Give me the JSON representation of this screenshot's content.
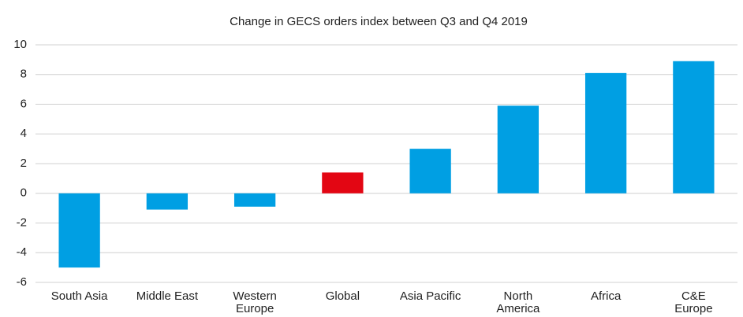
{
  "chart_data": {
    "type": "bar",
    "title": "Change in GECS orders index between Q3 and Q4 2019",
    "categories": [
      "South Asia",
      "Middle East",
      "Western\nEurope",
      "Global",
      "Asia Pacific",
      "North\nAmerica",
      "Africa",
      "C&E\nEurope"
    ],
    "values": [
      -5.0,
      -1.1,
      -0.9,
      1.4,
      3.0,
      5.9,
      8.1,
      8.9
    ],
    "colors": [
      "#009fe3",
      "#009fe3",
      "#009fe3",
      "#e30613",
      "#009fe3",
      "#009fe3",
      "#009fe3",
      "#009fe3"
    ],
    "ylim": [
      -6,
      10
    ],
    "yticks": [
      -6,
      -4,
      -2,
      0,
      2,
      4,
      6,
      8,
      10
    ],
    "grid": true
  }
}
